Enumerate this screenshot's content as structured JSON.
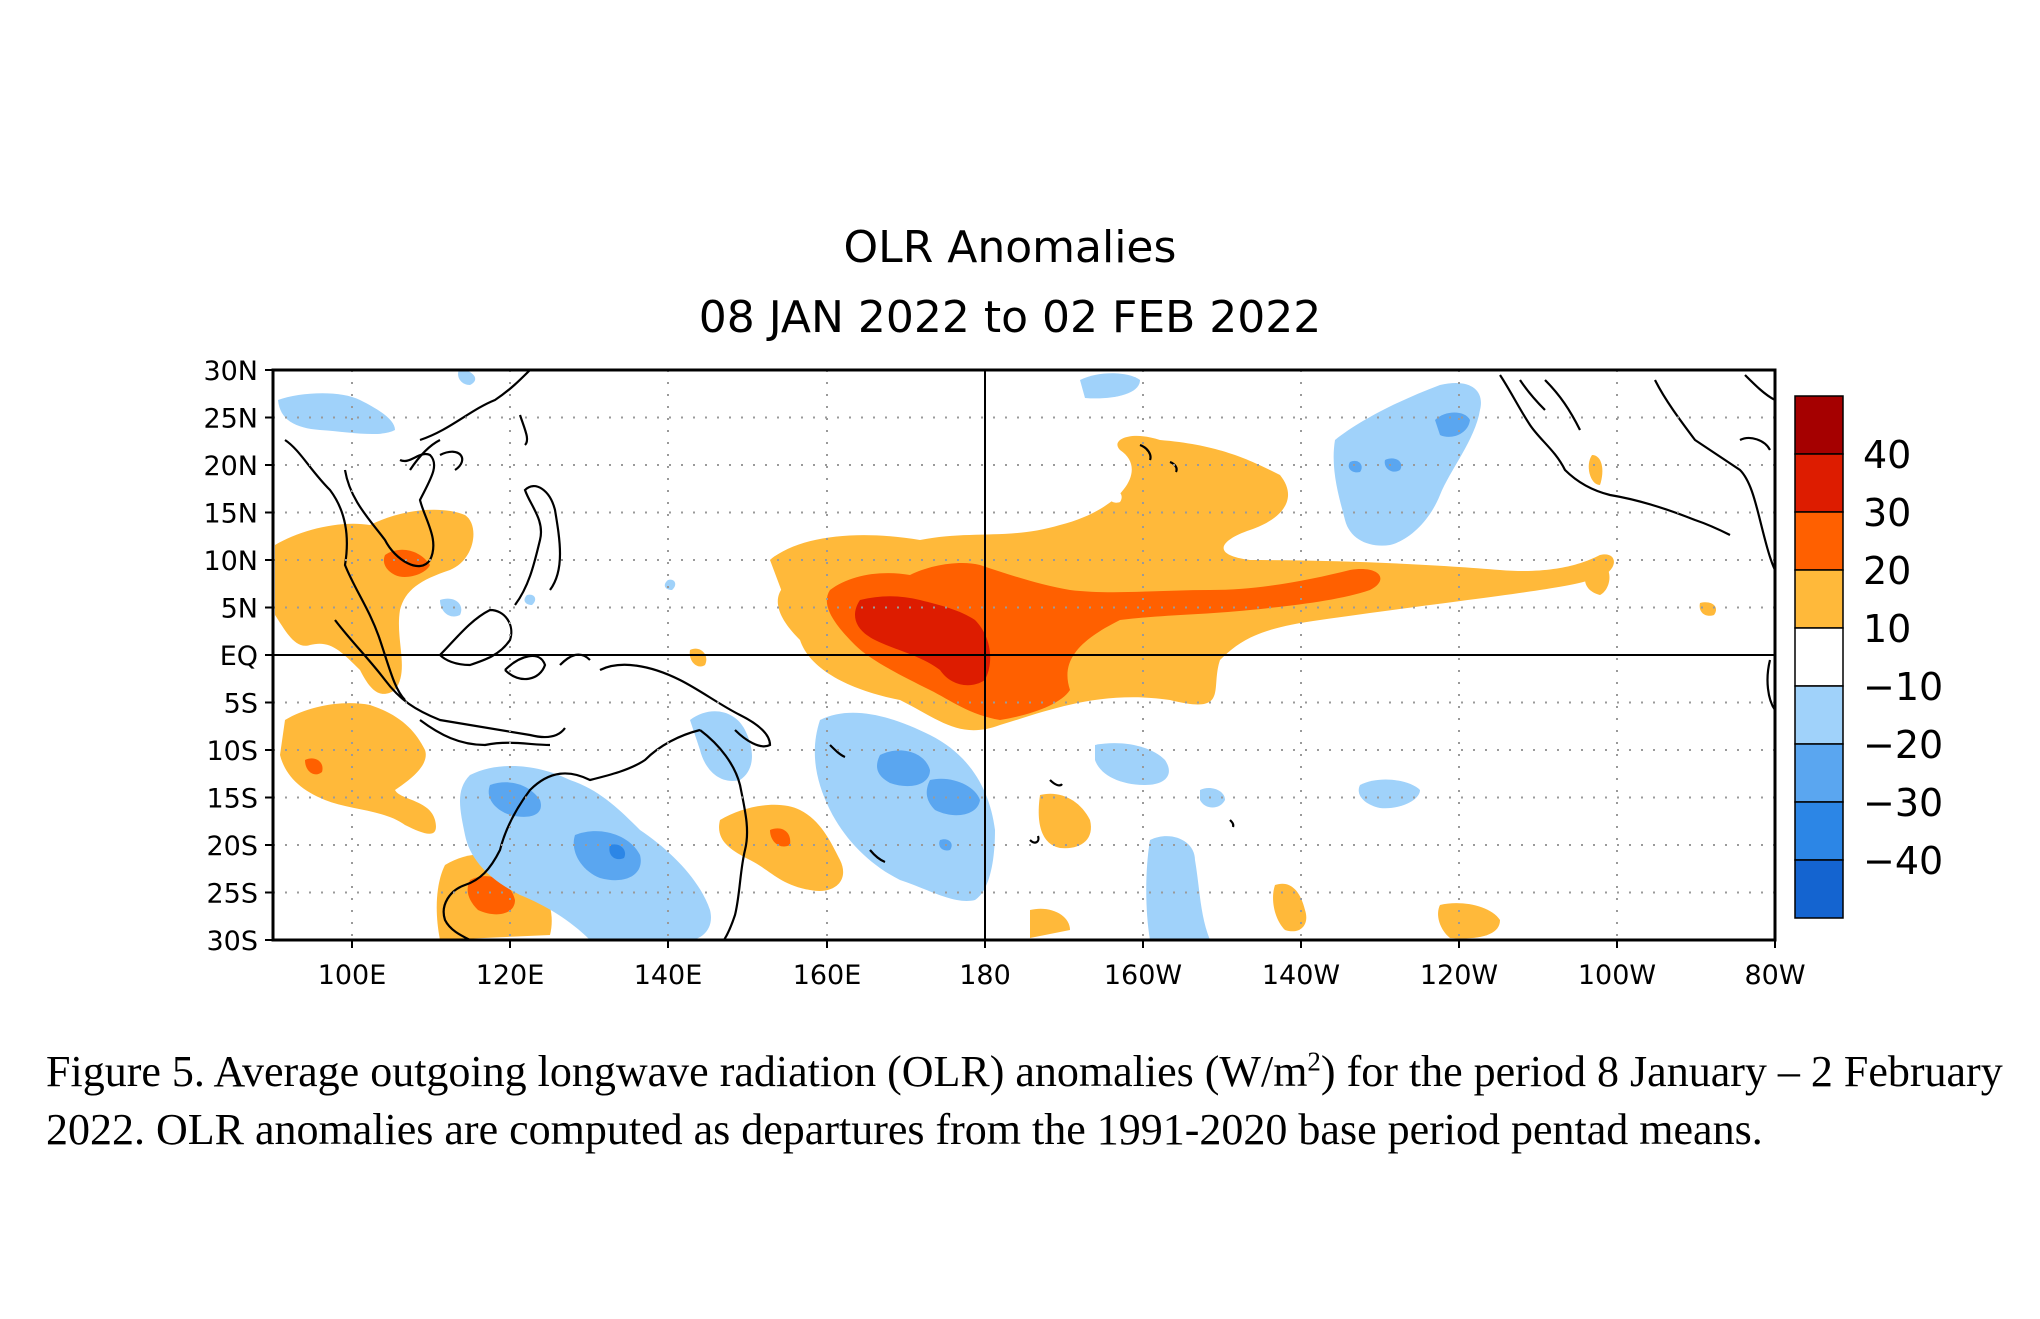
{
  "title_line1": "OLR Anomalies",
  "title_line2": "08 JAN 2022 to 02 FEB 2022",
  "lat_labels": [
    "30N",
    "25N",
    "20N",
    "15N",
    "10N",
    "5N",
    "EQ",
    "5S",
    "10S",
    "15S",
    "20S",
    "25S",
    "30S"
  ],
  "lon_labels": [
    "100E",
    "120E",
    "140E",
    "160E",
    "180",
    "160W",
    "140W",
    "120W",
    "100W",
    "80W"
  ],
  "colorbar": {
    "colors": [
      "#a50000",
      "#dd1c00",
      "#ff6000",
      "#ffb93a",
      "#ffffff",
      "#a0d2fa",
      "#5aa6f0",
      "#2c86e6",
      "#1464d0"
    ],
    "labels": [
      "40",
      "30",
      "20",
      "10",
      "−10",
      "−20",
      "−30",
      "−40"
    ]
  },
  "caption": {
    "part1": "Figure 5. Average outgoing longwave radiation (OLR) anomalies (W/m",
    "sup": "2",
    "part2": ") for the period 8 January – 2 February 2022.  OLR anomalies are computed as departures from the 1991-2020 base period pentad means."
  }
}
